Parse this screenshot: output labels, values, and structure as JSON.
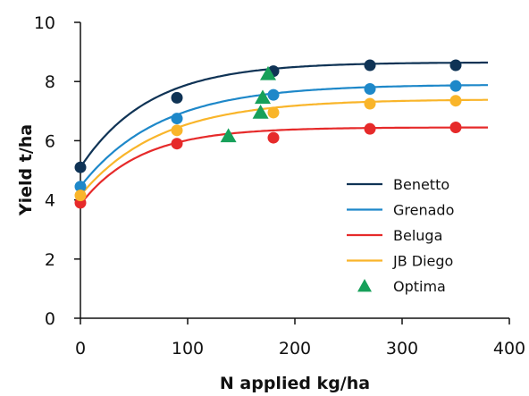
{
  "chart_data": {
    "type": "scatter",
    "xlabel": "N applied kg/ha",
    "ylabel": "Yield t/ha",
    "xlim": [
      0,
      400
    ],
    "ylim": [
      0,
      10
    ],
    "xticks": [
      "0",
      "100",
      "200",
      "300",
      "400"
    ],
    "yticks": [
      "0",
      "2",
      "4",
      "6",
      "8",
      "10"
    ],
    "grid": false,
    "legend_position": "lower-right",
    "series": [
      {
        "name": "Benetto",
        "color": "#0f3355",
        "marker": "circle",
        "points": [
          [
            0,
            5.1
          ],
          [
            90,
            7.45
          ],
          [
            180,
            8.35
          ],
          [
            270,
            8.55
          ],
          [
            350,
            8.55
          ]
        ],
        "fit": {
          "ymax": 8.65,
          "ystart": 5.1,
          "k": 0.0155
        }
      },
      {
        "name": "Grenado",
        "color": "#1e88c9",
        "marker": "circle",
        "points": [
          [
            0,
            4.45
          ],
          [
            90,
            6.75
          ],
          [
            180,
            7.55
          ],
          [
            270,
            7.75
          ],
          [
            350,
            7.85
          ]
        ],
        "fit": {
          "ymax": 7.9,
          "ystart": 4.45,
          "k": 0.0135
        }
      },
      {
        "name": "Beluga",
        "color": "#e62a2a",
        "marker": "circle",
        "points": [
          [
            0,
            3.9
          ],
          [
            90,
            5.9
          ],
          [
            180,
            6.1
          ],
          [
            270,
            6.4
          ],
          [
            350,
            6.45
          ]
        ],
        "fit": {
          "ymax": 6.45,
          "ystart": 3.85,
          "k": 0.018
        }
      },
      {
        "name": "JB Diego",
        "color": "#f9b52a",
        "marker": "circle",
        "points": [
          [
            0,
            4.15
          ],
          [
            90,
            6.35
          ],
          [
            180,
            6.95
          ],
          [
            270,
            7.25
          ],
          [
            350,
            7.35
          ]
        ],
        "fit": {
          "ymax": 7.4,
          "ystart": 4.15,
          "k": 0.0135
        }
      },
      {
        "name": "Optima",
        "color": "#17a05a",
        "marker": "triangle",
        "points": [
          [
            138,
            6.15
          ],
          [
            168,
            6.95
          ],
          [
            170,
            7.45
          ],
          [
            175,
            8.25
          ]
        ]
      }
    ]
  }
}
